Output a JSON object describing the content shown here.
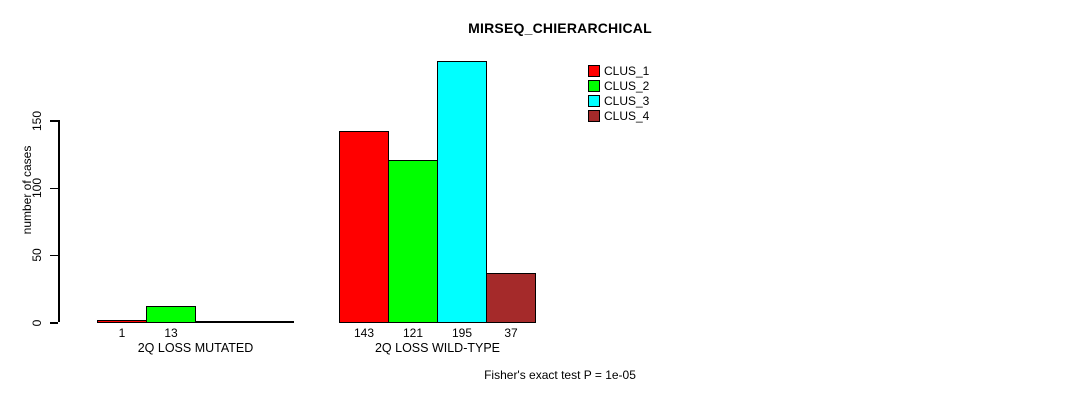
{
  "chart_data": {
    "type": "bar",
    "title": "MIRSEQ_CHIERARCHICAL",
    "ylabel": "number of cases",
    "xlabel": "",
    "ylim": [
      0,
      150
    ],
    "y_ticks": [
      0,
      50,
      100,
      150
    ],
    "grid": false,
    "legend_position": "top-right",
    "series": [
      "CLUS_1",
      "CLUS_2",
      "CLUS_3",
      "CLUS_4"
    ],
    "series_colors": {
      "CLUS_1": "#ff0000",
      "CLUS_2": "#00ff00",
      "CLUS_3": "#00ffff",
      "CLUS_4": "#a52a2a"
    },
    "groups": [
      {
        "label": "2Q LOSS MUTATED",
        "bars": [
          {
            "series": "CLUS_1",
            "value": 1,
            "label": "1"
          },
          {
            "series": "CLUS_2",
            "value": 13,
            "label": "13"
          },
          {
            "series": "CLUS_3",
            "value": 0,
            "label": ""
          },
          {
            "series": "CLUS_4",
            "value": 0,
            "label": ""
          }
        ]
      },
      {
        "label": "2Q LOSS WILD-TYPE",
        "bars": [
          {
            "series": "CLUS_1",
            "value": 143,
            "label": "143"
          },
          {
            "series": "CLUS_2",
            "value": 121,
            "label": "121"
          },
          {
            "series": "CLUS_3",
            "value": 195,
            "label": "195"
          },
          {
            "series": "CLUS_4",
            "value": 37,
            "label": "37"
          }
        ]
      }
    ],
    "annotation": "Fisher's exact test P = 1e-05",
    "colors": {
      "axis": "#000000",
      "background": "#ffffff",
      "text": "#000000"
    }
  }
}
